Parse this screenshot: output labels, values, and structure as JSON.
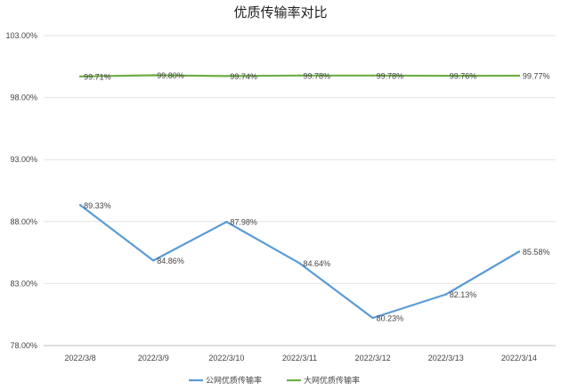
{
  "chart_data": {
    "type": "line",
    "title": "优质传输率对比",
    "categories": [
      "2022/3/8",
      "2022/3/9",
      "2022/3/10",
      "2022/3/11",
      "2022/3/12",
      "2022/3/13",
      "2022/3/14"
    ],
    "series": [
      {
        "name": "公网优质传输率",
        "color": "#5b9bd5",
        "values": [
          89.33,
          84.86,
          87.98,
          84.64,
          80.23,
          82.13,
          85.58
        ],
        "labels": [
          "89.33%",
          "84.86%",
          "87.98%",
          "84.64%",
          "80.23%",
          "82.13%",
          "85.58%"
        ]
      },
      {
        "name": "大网优质传输率",
        "color": "#70ad47",
        "values": [
          99.71,
          99.8,
          99.74,
          99.78,
          99.78,
          99.76,
          99.77
        ],
        "labels": [
          "99.71%",
          "99.80%",
          "99.74%",
          "99.78%",
          "99.78%",
          "99.76%",
          "99.77%"
        ]
      }
    ],
    "ylim": [
      78,
      103
    ],
    "yticks": [
      78,
      83,
      88,
      93,
      98,
      103
    ],
    "ytick_labels": [
      "78.00%",
      "83.00%",
      "88.00%",
      "93.00%",
      "98.00%",
      "103.00%"
    ],
    "xlabel": "",
    "ylabel": "",
    "grid": true,
    "legend_position": "bottom"
  }
}
